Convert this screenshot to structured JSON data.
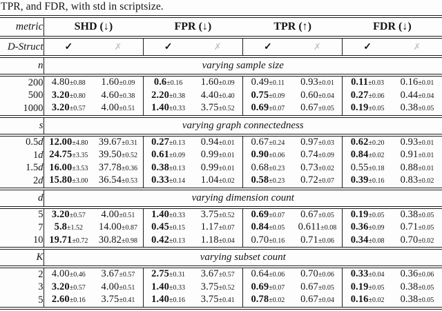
{
  "caption": "TPR, and FDR, with std in scriptsize.",
  "header": {
    "metric_label": "metric",
    "dstruct_label": "D-Struct",
    "check": "✓",
    "cross": "✗",
    "metrics": [
      {
        "label": "SHD (↓)"
      },
      {
        "label": "FPR (↓)"
      },
      {
        "label": "TPR (↑)"
      },
      {
        "label": "FDR (↓)"
      }
    ]
  },
  "colors": {
    "rule": "#1b1b1b",
    "cross_gray": "#c4c4c4",
    "text": "#141414"
  },
  "chart_data": {
    "type": "table",
    "title": "TPR, and FDR, with std in scriptsize.",
    "column_groups": [
      "SHD (↓)",
      "FPR (↓)",
      "TPR (↑)",
      "FDR (↓)"
    ],
    "subcolumns_per_group": [
      "D-Struct ✓",
      "D-Struct ✗"
    ]
  },
  "sections": [
    {
      "var": "n",
      "title": "varying sample size",
      "rows": [
        {
          "label": "200",
          "label_it": "",
          "cells": [
            {
              "v": "4.80",
              "s": "0.88",
              "b": 0
            },
            {
              "v": "1.60",
              "s": "0.09",
              "b": 0
            },
            {
              "v": "0.6",
              "s": "0.16",
              "b": 1
            },
            {
              "v": "1.60",
              "s": "0.09",
              "b": 0
            },
            {
              "v": "0.49",
              "s": "0.11",
              "b": 0
            },
            {
              "v": "0.93",
              "s": "0.01",
              "b": 0
            },
            {
              "v": "0.11",
              "s": "0.03",
              "b": 1
            },
            {
              "v": "0.16",
              "s": "0.01",
              "b": 0
            }
          ]
        },
        {
          "label": "500",
          "label_it": "",
          "cells": [
            {
              "v": "3.20",
              "s": "0.80",
              "b": 1
            },
            {
              "v": "4.60",
              "s": "0.38",
              "b": 0
            },
            {
              "v": "2.20",
              "s": "0.38",
              "b": 1
            },
            {
              "v": "4.40",
              "s": "0.40",
              "b": 0
            },
            {
              "v": "0.75",
              "s": "0.09",
              "b": 1
            },
            {
              "v": "0.60",
              "s": "0.04",
              "b": 0
            },
            {
              "v": "0.27",
              "s": "0.06",
              "b": 1
            },
            {
              "v": "0.44",
              "s": "0.04",
              "b": 0
            }
          ]
        },
        {
          "label": "1000",
          "label_it": "",
          "cells": [
            {
              "v": "3.20",
              "s": "0.57",
              "b": 1
            },
            {
              "v": "4.00",
              "s": "0.51",
              "b": 0
            },
            {
              "v": "1.40",
              "s": "0.33",
              "b": 1
            },
            {
              "v": "3.75",
              "s": "0.52",
              "b": 0
            },
            {
              "v": "0.69",
              "s": "0.07",
              "b": 1
            },
            {
              "v": "0.67",
              "s": "0.05",
              "b": 0
            },
            {
              "v": "0.19",
              "s": "0.05",
              "b": 1
            },
            {
              "v": "0.38",
              "s": "0.05",
              "b": 0
            }
          ]
        }
      ]
    },
    {
      "var": "s",
      "title": "varying graph connectedness",
      "rows": [
        {
          "label": "0.5",
          "label_it": "d",
          "cells": [
            {
              "v": "12.00",
              "s": "4.80",
              "b": 1
            },
            {
              "v": "39.67",
              "s": "0.31",
              "b": 0
            },
            {
              "v": "0.27",
              "s": "0.13",
              "b": 1
            },
            {
              "v": "0.94",
              "s": "0.01",
              "b": 0
            },
            {
              "v": "0.67",
              "s": "0.24",
              "b": 0
            },
            {
              "v": "0.97",
              "s": "0.03",
              "b": 0
            },
            {
              "v": "0.62",
              "s": "0.20",
              "b": 1
            },
            {
              "v": "0.93",
              "s": "0.01",
              "b": 0
            }
          ]
        },
        {
          "label": "1",
          "label_it": "d",
          "cells": [
            {
              "v": "24.75",
              "s": "3.35",
              "b": 1
            },
            {
              "v": "39.50",
              "s": "0.52",
              "b": 0
            },
            {
              "v": "0.61",
              "s": "0.09",
              "b": 1
            },
            {
              "v": "0.99",
              "s": "0.01",
              "b": 0
            },
            {
              "v": "0.90",
              "s": "0.06",
              "b": 1
            },
            {
              "v": "0.74",
              "s": "0.09",
              "b": 0
            },
            {
              "v": "0.84",
              "s": "0.02",
              "b": 1
            },
            {
              "v": "0.91",
              "s": "0.01",
              "b": 0
            }
          ]
        },
        {
          "label": "1.5",
          "label_it": "d",
          "cells": [
            {
              "v": "16.00",
              "s": "3.53",
              "b": 1
            },
            {
              "v": "37.78",
              "s": "0.36",
              "b": 0
            },
            {
              "v": "0.38",
              "s": "0.13",
              "b": 1
            },
            {
              "v": "0.99",
              "s": "0.01",
              "b": 0
            },
            {
              "v": "0.68",
              "s": "0.23",
              "b": 0
            },
            {
              "v": "0.73",
              "s": "0.02",
              "b": 0
            },
            {
              "v": "0.55",
              "s": "0.18",
              "b": 0
            },
            {
              "v": "0.88",
              "s": "0.01",
              "b": 0
            }
          ]
        },
        {
          "label": "2",
          "label_it": "d",
          "cells": [
            {
              "v": "15.80",
              "s": "3.00",
              "b": 1
            },
            {
              "v": "36.54",
              "s": "0.53",
              "b": 0
            },
            {
              "v": "0.33",
              "s": "0.14",
              "b": 1
            },
            {
              "v": "1.04",
              "s": "0.02",
              "b": 0
            },
            {
              "v": "0.58",
              "s": "0.23",
              "b": 1
            },
            {
              "v": "0.72",
              "s": "0.07",
              "b": 0
            },
            {
              "v": "0.39",
              "s": "0.16",
              "b": 1
            },
            {
              "v": "0.83",
              "s": "0.02",
              "b": 0
            }
          ]
        }
      ]
    },
    {
      "var": "d",
      "title": "varying dimension count",
      "rows": [
        {
          "label": "5",
          "label_it": "",
          "cells": [
            {
              "v": "3.20",
              "s": "0.57",
              "b": 1
            },
            {
              "v": "4.00",
              "s": "0.51",
              "b": 0
            },
            {
              "v": "1.40",
              "s": "0.33",
              "b": 1
            },
            {
              "v": "3.75",
              "s": "0.52",
              "b": 0
            },
            {
              "v": "0.69",
              "s": "0.07",
              "b": 1
            },
            {
              "v": "0.67",
              "s": "0.05",
              "b": 0
            },
            {
              "v": "0.19",
              "s": "0.05",
              "b": 1
            },
            {
              "v": "0.38",
              "s": "0.05",
              "b": 0
            }
          ]
        },
        {
          "label": "7",
          "label_it": "",
          "cells": [
            {
              "v": "5.8",
              "s": "1.52",
              "b": 1
            },
            {
              "v": "14.00",
              "s": "0.87",
              "b": 0
            },
            {
              "v": "0.45",
              "s": "0.15",
              "b": 1
            },
            {
              "v": "1.17",
              "s": "0.07",
              "b": 0
            },
            {
              "v": "0.84",
              "s": "0.05",
              "b": 1
            },
            {
              "v": "0.611",
              "s": "0.08",
              "b": 0
            },
            {
              "v": "0.36",
              "s": "0.09",
              "b": 1
            },
            {
              "v": "0.71",
              "s": "0.05",
              "b": 0
            }
          ]
        },
        {
          "label": "10",
          "label_it": "",
          "cells": [
            {
              "v": "19.71",
              "s": "0.72",
              "b": 1
            },
            {
              "v": "30.82",
              "s": "0.98",
              "b": 0
            },
            {
              "v": "0.42",
              "s": "0.13",
              "b": 1
            },
            {
              "v": "1.18",
              "s": "0.04",
              "b": 0
            },
            {
              "v": "0.70",
              "s": "0.16",
              "b": 0
            },
            {
              "v": "0.71",
              "s": "0.06",
              "b": 0
            },
            {
              "v": "0.34",
              "s": "0.08",
              "b": 1
            },
            {
              "v": "0.70",
              "s": "0.02",
              "b": 0
            }
          ]
        }
      ]
    },
    {
      "var": "K",
      "title": "varying subset count",
      "rows": [
        {
          "label": "2",
          "label_it": "",
          "cells": [
            {
              "v": "4.00",
              "s": "0.46",
              "b": 0
            },
            {
              "v": "3.67",
              "s": "0.57",
              "b": 0
            },
            {
              "v": "2.75",
              "s": "0.31",
              "b": 1
            },
            {
              "v": "3.67",
              "s": "0.57",
              "b": 0
            },
            {
              "v": "0.64",
              "s": "0.06",
              "b": 0
            },
            {
              "v": "0.70",
              "s": "0.06",
              "b": 0
            },
            {
              "v": "0.33",
              "s": "0.04",
              "b": 1
            },
            {
              "v": "0.36",
              "s": "0.06",
              "b": 0
            }
          ]
        },
        {
          "label": "3",
          "label_it": "",
          "cells": [
            {
              "v": "3.20",
              "s": "0.57",
              "b": 1
            },
            {
              "v": "4.00",
              "s": "0.51",
              "b": 0
            },
            {
              "v": "1.40",
              "s": "0.33",
              "b": 1
            },
            {
              "v": "3.75",
              "s": "0.52",
              "b": 0
            },
            {
              "v": "0.69",
              "s": "0.07",
              "b": 1
            },
            {
              "v": "0.67",
              "s": "0.05",
              "b": 0
            },
            {
              "v": "0.19",
              "s": "0.05",
              "b": 1
            },
            {
              "v": "0.38",
              "s": "0.05",
              "b": 0
            }
          ]
        },
        {
          "label": "5",
          "label_it": "",
          "cells": [
            {
              "v": "2.60",
              "s": "0.16",
              "b": 1
            },
            {
              "v": "3.75",
              "s": "0.41",
              "b": 0
            },
            {
              "v": "1.40",
              "s": "0.16",
              "b": 1
            },
            {
              "v": "3.75",
              "s": "0.41",
              "b": 0
            },
            {
              "v": "0.78",
              "s": "0.02",
              "b": 1
            },
            {
              "v": "0.67",
              "s": "0.04",
              "b": 0
            },
            {
              "v": "0.16",
              "s": "0.02",
              "b": 1
            },
            {
              "v": "0.38",
              "s": "0.05",
              "b": 0
            }
          ]
        }
      ]
    }
  ]
}
